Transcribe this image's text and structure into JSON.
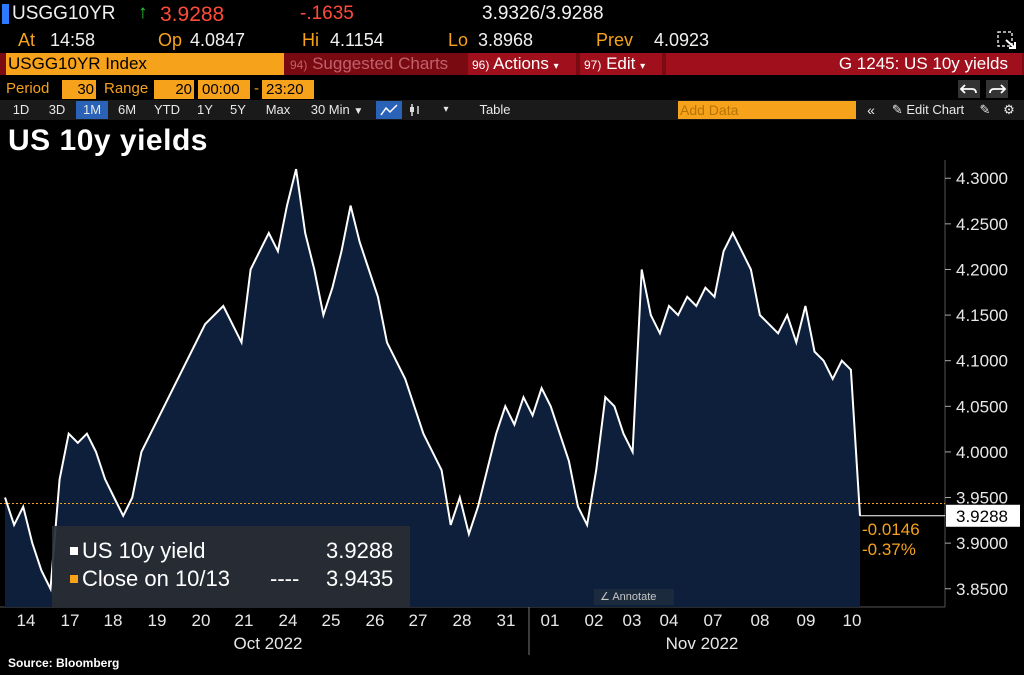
{
  "header": {
    "ticker": "USGG10YR",
    "last": "3.9288",
    "change": "-.1635",
    "bid_ask": "3.9326/3.9288",
    "at_label": "At",
    "at_value": "14:58",
    "op_label": "Op",
    "op_value": "4.0847",
    "hi_label": "Hi",
    "hi_value": "4.1154",
    "lo_label": "Lo",
    "lo_value": "3.8968",
    "prev_label": "Prev",
    "prev_value": "4.0923"
  },
  "menubar": {
    "index_name": "USGG10YR Index",
    "suggested_num": "94)",
    "suggested_label": "Suggested Charts",
    "actions_num": "96)",
    "actions_label": "Actions",
    "edit_num": "97)",
    "edit_label": "Edit",
    "chart_id": "G 1245: US 10y yields"
  },
  "period_row": {
    "period_label": "Period",
    "period_value": "30",
    "range_label": "Range",
    "range_value": "20",
    "time_from": "00:00",
    "dash": "-",
    "time_to": "23:20"
  },
  "toolbar": {
    "ranges": [
      "1D",
      "3D",
      "1M",
      "6M",
      "YTD",
      "1Y",
      "5Y",
      "Max"
    ],
    "selected_range": "1M",
    "interval": "30 Min",
    "table_label": "Table",
    "add_data_placeholder": "Add Data",
    "edit_chart_label": "Edit Chart"
  },
  "colors": {
    "amber": "#f7a21b",
    "line": "#ffffff",
    "area": "#0d1f3a",
    "up": "#2fcf3c",
    "down": "#ff4b3a",
    "bar_red": "#a0101c"
  },
  "chart_data": {
    "type": "area",
    "title": "US 10y yields",
    "x_date_labels": [
      "14",
      "17",
      "18",
      "19",
      "20",
      "21",
      "24",
      "25",
      "26",
      "27",
      "28",
      "31",
      "01",
      "02",
      "03",
      "04",
      "07",
      "08",
      "09",
      "10"
    ],
    "month_labels": [
      "Oct 2022",
      "Nov 2022"
    ],
    "yticks": [
      "4.3000",
      "4.2500",
      "4.2000",
      "4.1500",
      "4.1000",
      "4.0500",
      "4.0000",
      "3.9500",
      "3.9000",
      "3.8500"
    ],
    "ylim": [
      3.83,
      4.32
    ],
    "series": [
      {
        "name": "US 10y yield",
        "legend_value": "3.9288",
        "values": [
          3.95,
          3.92,
          3.94,
          3.9,
          3.87,
          3.85,
          3.97,
          4.02,
          4.01,
          4.02,
          4.0,
          3.97,
          3.95,
          3.93,
          3.95,
          4.0,
          4.02,
          4.04,
          4.06,
          4.08,
          4.1,
          4.12,
          4.14,
          4.15,
          4.16,
          4.14,
          4.12,
          4.2,
          4.22,
          4.24,
          4.22,
          4.27,
          4.31,
          4.24,
          4.2,
          4.15,
          4.18,
          4.22,
          4.27,
          4.23,
          4.2,
          4.17,
          4.12,
          4.1,
          4.08,
          4.05,
          4.02,
          4.0,
          3.98,
          3.92,
          3.95,
          3.91,
          3.94,
          3.98,
          4.02,
          4.05,
          4.03,
          4.06,
          4.04,
          4.07,
          4.05,
          4.02,
          3.99,
          3.94,
          3.92,
          3.98,
          4.06,
          4.05,
          4.02,
          4.0,
          4.2,
          4.15,
          4.13,
          4.16,
          4.15,
          4.17,
          4.16,
          4.18,
          4.17,
          4.22,
          4.24,
          4.22,
          4.2,
          4.15,
          4.14,
          4.13,
          4.15,
          4.12,
          4.16,
          4.11,
          4.1,
          4.08,
          4.1,
          4.09,
          3.93
        ]
      },
      {
        "name": "Close on 10/13",
        "legend_value": "3.9435",
        "value": 3.9435
      }
    ],
    "last_value_label": "3.9288",
    "change_abs": "-0.0146",
    "change_pct": "-0.37%",
    "legend_line_marker": "----",
    "annotate_label": "Annotate"
  },
  "footer": {
    "source": "Source: Bloomberg"
  }
}
